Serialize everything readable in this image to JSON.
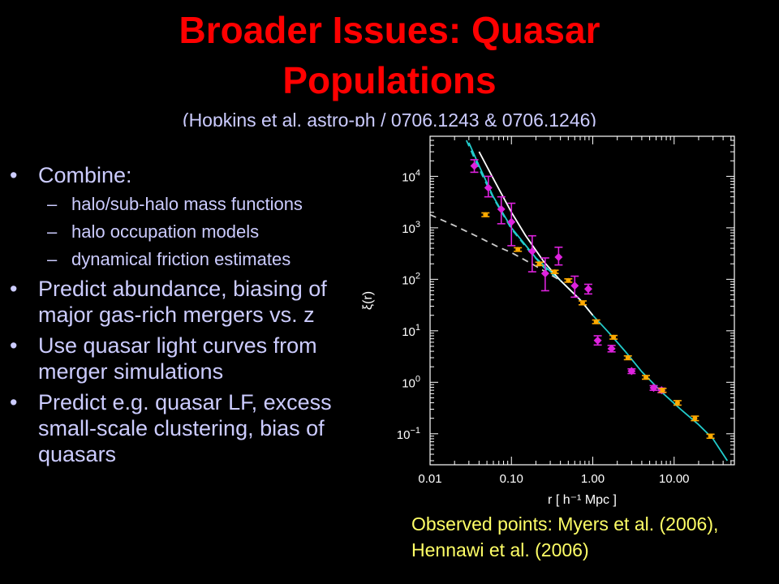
{
  "slide": {
    "title_line1": "Broader Issues: Quasar",
    "title_line2": "Populations",
    "citation": "(Hopkins et al. astro-ph / 0706.1243 & 0706.1246)",
    "bullets": {
      "b1": "Combine:",
      "b1a": "halo/sub-halo mass functions",
      "b1b": "halo occupation models",
      "b1c": "dynamical friction estimates",
      "b2": "Predict abundance, biasing of major gas-rich mergers vs. z",
      "b3": "Use quasar light curves from merger simulations",
      "b4": "Predict e.g. quasar LF, excess small-scale clustering, bias of quasars"
    },
    "caption_line1": "Observed points: Myers et al. (2006),",
    "caption_line2": "Hennawi et al. (2006)",
    "colors": {
      "title": "#ff0000",
      "text": "#ccccff",
      "caption": "#ffff66",
      "magenta_points": "#dd22dd",
      "orange_points": "#ffaa00",
      "model_cyan": "#22cccc",
      "model_white": "#ffffff",
      "model_dashed": "#cccccc"
    }
  },
  "chart_data": {
    "type": "scatter",
    "xlabel": "r  [ h⁻¹ Mpc ]",
    "ylabel": "ξ(r)",
    "xscale": "log",
    "yscale": "log",
    "xlim": [
      0.01,
      55
    ],
    "ylim": [
      0.025,
      60000
    ],
    "xticks": [
      {
        "v": 0.01,
        "label": "0.01"
      },
      {
        "v": 0.1,
        "label": "0.10"
      },
      {
        "v": 1,
        "label": "1.00"
      },
      {
        "v": 10,
        "label": "10.00"
      }
    ],
    "yticks": [
      {
        "v": 0.1,
        "base": "10",
        "exp": "−1"
      },
      {
        "v": 1,
        "base": "10",
        "exp": "0"
      },
      {
        "v": 10,
        "base": "10",
        "exp": "1"
      },
      {
        "v": 100,
        "base": "10",
        "exp": "2"
      },
      {
        "v": 1000,
        "base": "10",
        "exp": "3"
      },
      {
        "v": 10000,
        "base": "10",
        "exp": "4"
      }
    ],
    "grid": false,
    "series": [
      {
        "marker": "diamond",
        "color": "#dd22dd",
        "points": [
          {
            "x": 0.035,
            "y": 16000,
            "lo": 12000,
            "hi": 21000
          },
          {
            "x": 0.052,
            "y": 6000,
            "lo": 4000,
            "hi": 10000
          },
          {
            "x": 0.075,
            "y": 2300,
            "lo": 1200,
            "hi": 4000
          },
          {
            "x": 0.1,
            "y": 1300,
            "lo": 450,
            "hi": 3000
          },
          {
            "x": 0.18,
            "y": 350,
            "lo": 140,
            "hi": 700
          },
          {
            "x": 0.26,
            "y": 130,
            "lo": 60,
            "hi": 260
          },
          {
            "x": 0.38,
            "y": 270,
            "lo": 190,
            "hi": 420
          },
          {
            "x": 0.6,
            "y": 75,
            "lo": 45,
            "hi": 115
          },
          {
            "x": 0.88,
            "y": 65,
            "lo": 52,
            "hi": 80
          },
          {
            "x": 1.15,
            "y": 6.5,
            "lo": 5.3,
            "hi": 8.0
          },
          {
            "x": 1.7,
            "y": 4.5,
            "lo": 3.9,
            "hi": 5.2
          },
          {
            "x": 3.0,
            "y": 1.65,
            "lo": 1.48,
            "hi": 1.82
          },
          {
            "x": 5.6,
            "y": 0.78,
            "lo": 0.7,
            "hi": 0.86
          },
          {
            "x": 7.0,
            "y": 0.7,
            "lo": 0.63,
            "hi": 0.77
          }
        ]
      },
      {
        "marker": "circle",
        "color": "#ffaa00",
        "points": [
          {
            "x": 0.048,
            "y": 1800,
            "lo": 1650,
            "hi": 1950
          },
          {
            "x": 0.12,
            "y": 380,
            "lo": 350,
            "hi": 410
          },
          {
            "x": 0.22,
            "y": 200,
            "lo": 185,
            "hi": 215
          },
          {
            "x": 0.34,
            "y": 140,
            "lo": 130,
            "hi": 150
          },
          {
            "x": 0.5,
            "y": 95,
            "lo": 88,
            "hi": 102
          },
          {
            "x": 0.75,
            "y": 35,
            "lo": 32,
            "hi": 38
          },
          {
            "x": 1.1,
            "y": 15,
            "lo": 13.8,
            "hi": 16.2
          },
          {
            "x": 1.8,
            "y": 7.5,
            "lo": 6.9,
            "hi": 8.1
          },
          {
            "x": 2.7,
            "y": 3.0,
            "lo": 2.75,
            "hi": 3.25
          },
          {
            "x": 4.5,
            "y": 1.25,
            "lo": 1.15,
            "hi": 1.35
          },
          {
            "x": 7.2,
            "y": 0.7,
            "lo": 0.64,
            "hi": 0.76
          },
          {
            "x": 11,
            "y": 0.4,
            "lo": 0.36,
            "hi": 0.44
          },
          {
            "x": 18,
            "y": 0.2,
            "lo": 0.18,
            "hi": 0.22
          },
          {
            "x": 28,
            "y": 0.09,
            "lo": 0.082,
            "hi": 0.098
          }
        ]
      }
    ],
    "models": [
      {
        "style": "solid",
        "color": "#22cccc",
        "points": [
          [
            0.03,
            45000
          ],
          [
            0.04,
            16000
          ],
          [
            0.06,
            4000
          ],
          [
            0.1,
            1000
          ],
          [
            0.2,
            260
          ],
          [
            0.4,
            95
          ],
          [
            0.7,
            40
          ],
          [
            1.0,
            20
          ],
          [
            1.5,
            10
          ],
          [
            2.5,
            4
          ],
          [
            4,
            1.6
          ],
          [
            7,
            0.65
          ],
          [
            12,
            0.3
          ],
          [
            20,
            0.15
          ],
          [
            30,
            0.08
          ],
          [
            45,
            0.03
          ]
        ]
      },
      {
        "style": "solid",
        "color": "#ffffff",
        "points": [
          [
            0.04,
            30000
          ],
          [
            0.06,
            9000
          ],
          [
            0.1,
            2000
          ],
          [
            0.15,
            700
          ],
          [
            0.25,
            220
          ],
          [
            0.4,
            95
          ],
          [
            0.7,
            40
          ],
          [
            1.0,
            20
          ]
        ]
      },
      {
        "style": "dashed",
        "color": "#22cccc",
        "points": [
          [
            0.028,
            50000
          ],
          [
            0.04,
            14000
          ],
          [
            0.06,
            3800
          ],
          [
            0.1,
            950
          ],
          [
            0.16,
            380
          ],
          [
            0.25,
            170
          ],
          [
            0.4,
            95
          ]
        ]
      },
      {
        "style": "dashed",
        "color": "#cccccc",
        "points": [
          [
            0.01,
            1800
          ],
          [
            0.02,
            1100
          ],
          [
            0.04,
            650
          ],
          [
            0.07,
            420
          ],
          [
            0.1,
            330
          ],
          [
            0.2,
            180
          ],
          [
            0.4,
            95
          ]
        ]
      }
    ]
  }
}
